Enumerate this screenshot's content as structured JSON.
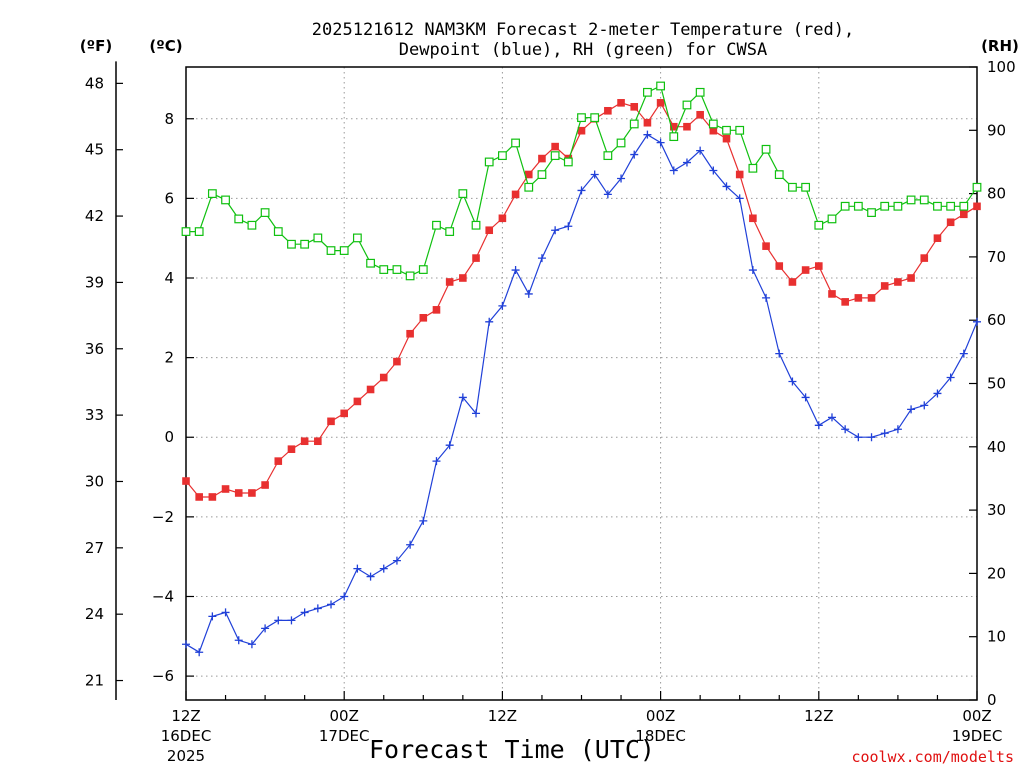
{
  "chart_data": {
    "type": "line",
    "title_line1": "2025121612 NAM3KM Forecast 2-meter Temperature (red),",
    "title_line2": "Dewpoint (blue), RH (green) for CWSA",
    "xlabel": "Forecast Time (UTC)",
    "credit": "coolwx.com/modelts",
    "units": {
      "fahrenheit": "(ºF)",
      "celsius": "(ºC)",
      "rh": "(RH)"
    },
    "x_range_hours": [
      0,
      60
    ],
    "x_ticks": [
      {
        "hour": 0,
        "line1": "12Z",
        "line2": "16DEC",
        "line3": "2025"
      },
      {
        "hour": 12,
        "line1": "00Z",
        "line2": "17DEC",
        "line3": ""
      },
      {
        "hour": 24,
        "line1": "12Z",
        "line2": "",
        "line3": ""
      },
      {
        "hour": 36,
        "line1": "00Z",
        "line2": "18DEC",
        "line3": ""
      },
      {
        "hour": 48,
        "line1": "12Z",
        "line2": "",
        "line3": ""
      },
      {
        "hour": 60,
        "line1": "00Z",
        "line2": "19DEC",
        "line3": ""
      }
    ],
    "y_left_celsius": {
      "range": [
        -6.6,
        9.3
      ],
      "ticks": [
        "−6",
        "−4",
        "−2",
        "0",
        "2",
        "4",
        "6",
        "8"
      ],
      "tick_values": [
        -6,
        -4,
        -2,
        0,
        2,
        4,
        6,
        8
      ]
    },
    "y_left_fahrenheit": {
      "ticks": [
        "21",
        "24",
        "27",
        "30",
        "33",
        "36",
        "39",
        "42",
        "45",
        "48"
      ],
      "tick_values": [
        21,
        24,
        27,
        30,
        33,
        36,
        39,
        42,
        45,
        48
      ]
    },
    "y_right_rh": {
      "range": [
        0,
        100
      ],
      "ticks": [
        "0",
        "10",
        "20",
        "30",
        "40",
        "50",
        "60",
        "70",
        "80",
        "90",
        "100"
      ],
      "tick_values": [
        0,
        10,
        20,
        30,
        40,
        50,
        60,
        70,
        80,
        90,
        100
      ]
    },
    "grid": true,
    "series": [
      {
        "name": "Temperature",
        "axis": "celsius",
        "color": "#e83030",
        "marker": "filled-square",
        "values": [
          -1.1,
          -1.5,
          -1.5,
          -1.3,
          -1.4,
          -1.4,
          -1.2,
          -0.6,
          -0.3,
          -0.1,
          -0.1,
          0.4,
          0.6,
          0.9,
          1.2,
          1.5,
          1.9,
          2.6,
          3.0,
          3.2,
          3.9,
          4.0,
          4.5,
          5.2,
          5.5,
          6.1,
          6.6,
          7.0,
          7.3,
          7.0,
          7.7,
          8.0,
          8.2,
          8.4,
          8.3,
          7.9,
          8.4,
          7.8,
          7.8,
          8.1,
          7.7,
          7.5,
          6.6,
          5.5,
          4.8,
          4.3,
          3.9,
          4.2,
          4.3,
          3.6,
          3.4,
          3.5,
          3.5,
          3.8,
          3.9,
          4.0,
          4.5,
          5.0,
          5.4,
          5.6,
          5.8
        ]
      },
      {
        "name": "Dewpoint",
        "axis": "celsius",
        "color": "#2040d8",
        "marker": "plus",
        "values": [
          -5.2,
          -5.4,
          -4.5,
          -4.4,
          -5.1,
          -5.2,
          -4.8,
          -4.6,
          -4.6,
          -4.4,
          -4.3,
          -4.2,
          -4.0,
          -3.3,
          -3.5,
          -3.3,
          -3.1,
          -2.7,
          -2.1,
          -0.6,
          -0.2,
          1.0,
          0.6,
          2.9,
          3.3,
          4.2,
          3.6,
          4.5,
          5.2,
          5.3,
          6.2,
          6.6,
          6.1,
          6.5,
          7.1,
          7.6,
          7.4,
          6.7,
          6.9,
          7.2,
          6.7,
          6.3,
          6.0,
          4.2,
          3.5,
          2.1,
          1.4,
          1.0,
          0.3,
          0.5,
          0.2,
          0.0,
          0.0,
          0.1,
          0.2,
          0.7,
          0.8,
          1.1,
          1.5,
          2.1,
          2.9
        ]
      },
      {
        "name": "RH",
        "axis": "rh",
        "color": "#10c010",
        "marker": "open-square",
        "values": [
          74,
          74,
          80,
          79,
          76,
          75,
          77,
          74,
          72,
          72,
          73,
          71,
          71,
          73,
          69,
          68,
          68,
          67,
          68,
          75,
          74,
          80,
          75,
          85,
          86,
          88,
          81,
          83,
          86,
          85,
          92,
          92,
          86,
          88,
          91,
          96,
          97,
          89,
          94,
          96,
          91,
          90,
          90,
          84,
          87,
          83,
          81,
          81,
          75,
          76,
          78,
          78,
          77,
          78,
          78,
          79,
          79,
          78,
          78,
          78,
          81
        ]
      }
    ]
  }
}
